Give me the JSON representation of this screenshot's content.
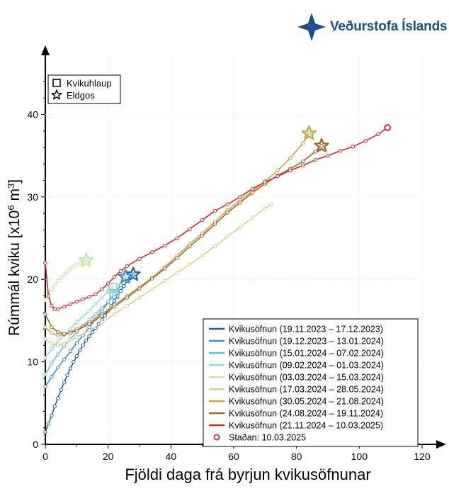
{
  "logo": {
    "text": "Veðurstofa Íslands",
    "color": "#1e4e8c"
  },
  "chart_data": {
    "type": "line",
    "xlabel": "Fjöldi daga frá byrjun kvikusöfnunar",
    "ylabel_prefix": "Rúmmál kviku [x10",
    "ylabel_exp": "6",
    "ylabel_mid": " m",
    "ylabel_exp2": "3",
    "ylabel_suffix": "]",
    "xlim": [
      0,
      120
    ],
    "ylim": [
      0,
      47
    ],
    "xticks": [
      0,
      20,
      40,
      60,
      80,
      100,
      120
    ],
    "yticks": [
      0,
      10,
      20,
      30,
      40
    ],
    "grid": false,
    "marker_legend": {
      "square": "Kvikuhlaup",
      "star": "Eldgos"
    },
    "legend_position": "bottom-right",
    "series": [
      {
        "name": "Kvikusöfnun (19.11.2023 – 17.12.2023)",
        "color": "#1f5fa3",
        "x": [
          0,
          1,
          2,
          3,
          4,
          5,
          6,
          7,
          8,
          9,
          10,
          11,
          12,
          13,
          14,
          15,
          16,
          17,
          18,
          19,
          20,
          21,
          22,
          23,
          24,
          25,
          26,
          27,
          28
        ],
        "y": [
          1.5,
          2.5,
          3.5,
          4.6,
          5.6,
          6.6,
          7.5,
          8.4,
          9.2,
          10,
          10.7,
          11.4,
          12,
          12.6,
          13.1,
          13.6,
          14.1,
          14.6,
          15.1,
          15.6,
          16.2,
          16.8,
          17.4,
          18.0,
          18.6,
          19.2,
          19.8,
          20.2,
          20.6
        ],
        "end_marker": "star",
        "end": [
          28,
          20.6
        ]
      },
      {
        "name": "Kvikusöfnun (19.12.2023 – 13.01.2024)",
        "color": "#3a8ed6",
        "x": [
          0,
          2,
          4,
          6,
          8,
          10,
          12,
          14,
          16,
          18,
          20,
          22,
          24,
          25
        ],
        "y": [
          7.0,
          8.2,
          9.3,
          10.3,
          11.3,
          12.3,
          13.2,
          14.2,
          15.2,
          16.2,
          17.2,
          18.2,
          19.3,
          20.3
        ],
        "end_marker": "star",
        "end": [
          25.5,
          20.3
        ]
      },
      {
        "name": "Kvikusöfnun (15.01.2024 – 07.02.2024)",
        "color": "#67bde3",
        "x": [
          0,
          2,
          4,
          6,
          8,
          10,
          12,
          14,
          16,
          18,
          20,
          22
        ],
        "y": [
          8.5,
          9.8,
          10.9,
          11.9,
          12.8,
          13.6,
          14.4,
          15.1,
          15.8,
          16.5,
          17.3,
          18.2
        ],
        "end_marker": "square",
        "end": [
          22,
          18.2
        ]
      },
      {
        "name": "Kvikusöfnun (09.02.2024 – 01.03.2024)",
        "color": "#8fdcc8",
        "x": [
          0,
          2,
          4,
          6,
          8,
          10,
          12,
          14,
          16,
          18,
          20,
          21
        ],
        "y": [
          10.5,
          11.6,
          12.5,
          13.3,
          14.0,
          14.8,
          15.5,
          16.2,
          17.0,
          17.8,
          18.6,
          19.0
        ],
        "end_marker": "square",
        "end": [
          21.5,
          19.0
        ]
      },
      {
        "name": "Kvikusöfnun (03.03.2024 – 15.03.2024)",
        "color": "#c4e6a9",
        "x": [
          0,
          1,
          2,
          3,
          4,
          5,
          6,
          7,
          8,
          9,
          10,
          11,
          12,
          13
        ],
        "y": [
          17.5,
          18.3,
          18.8,
          19.3,
          19.8,
          20.2,
          20.6,
          21.0,
          21.3,
          21.6,
          21.8,
          22.0,
          22.2,
          22.3
        ],
        "end_marker": "star",
        "end": [
          13,
          22.3
        ]
      },
      {
        "name": "Kvikusöfnun (17.03.2024 – 28.05.2024)",
        "color": "#d9cf8e",
        "x": [
          0,
          2,
          4,
          6,
          8,
          10,
          14,
          18,
          22,
          26,
          30,
          34,
          38,
          42,
          46,
          50,
          54,
          58,
          62,
          66,
          70,
          72
        ],
        "y": [
          12.8,
          12.2,
          12.0,
          12.2,
          12.6,
          13.0,
          13.8,
          14.8,
          15.8,
          16.8,
          17.8,
          18.8,
          19.8,
          20.8,
          21.8,
          22.9,
          24.0,
          25.2,
          26.3,
          27.5,
          28.6,
          29.1
        ],
        "end_marker": "none",
        "end": [
          72,
          29.1
        ]
      },
      {
        "name": "Kvikusöfnun (30.05.2024 – 21.08.2024)",
        "color": "#c9a44f",
        "x": [
          0,
          2,
          4,
          6,
          8,
          10,
          14,
          18,
          22,
          26,
          30,
          34,
          38,
          42,
          46,
          50,
          54,
          58,
          62,
          66,
          70,
          74,
          78,
          82,
          84
        ],
        "y": [
          14.2,
          13.5,
          13.2,
          13.3,
          13.6,
          14.0,
          14.8,
          15.8,
          16.9,
          18.0,
          19.1,
          20.2,
          21.5,
          22.9,
          24.3,
          25.6,
          27.0,
          28.4,
          29.6,
          30.7,
          31.9,
          33.2,
          34.7,
          36.5,
          37.7
        ],
        "end_marker": "star",
        "end": [
          84,
          37.7
        ]
      },
      {
        "name": "Kvikusöfnun (24.08.2024 – 19.11.2024)",
        "color": "#a0662c",
        "x": [
          0,
          2,
          4,
          6,
          8,
          10,
          14,
          18,
          22,
          26,
          30,
          34,
          38,
          42,
          46,
          50,
          54,
          58,
          62,
          66,
          70,
          74,
          78,
          82,
          86,
          88
        ],
        "y": [
          15.8,
          14.2,
          13.6,
          13.4,
          13.5,
          13.8,
          14.6,
          15.6,
          16.7,
          17.8,
          18.9,
          20.1,
          21.3,
          22.6,
          24.0,
          25.3,
          26.7,
          28.1,
          29.3,
          30.5,
          31.6,
          32.6,
          33.4,
          34.3,
          35.5,
          36.2
        ],
        "end_marker": "star",
        "end": [
          88,
          36.2
        ]
      },
      {
        "name": "Kvikusöfnun (21.11.2024 – 10.03.2025)",
        "color": "#d62a2a",
        "x": [
          0,
          1,
          2,
          3,
          4,
          6,
          8,
          10,
          12,
          14,
          16,
          18,
          20,
          22,
          24,
          26,
          30,
          34,
          38,
          42,
          46,
          50,
          54,
          58,
          62,
          66,
          70,
          74,
          78,
          82,
          86,
          90,
          94,
          98,
          102,
          106,
          109
        ],
        "y": [
          22.0,
          18.0,
          16.8,
          16.4,
          16.4,
          16.7,
          17.0,
          17.3,
          17.6,
          17.9,
          18.2,
          18.8,
          19.5,
          20.3,
          21.0,
          21.6,
          22.5,
          23.3,
          24.1,
          25.0,
          26.1,
          27.2,
          28.3,
          29.1,
          30.0,
          31.0,
          31.8,
          32.5,
          33.2,
          33.8,
          34.5,
          35.0,
          35.6,
          36.1,
          36.8,
          37.6,
          38.4
        ],
        "end_marker": "none",
        "end": [
          109,
          38.4
        ]
      }
    ],
    "current": {
      "label": "Staðan: 10.03.2025",
      "x": 109,
      "y": 38.4,
      "color": "#d62a2a"
    }
  }
}
